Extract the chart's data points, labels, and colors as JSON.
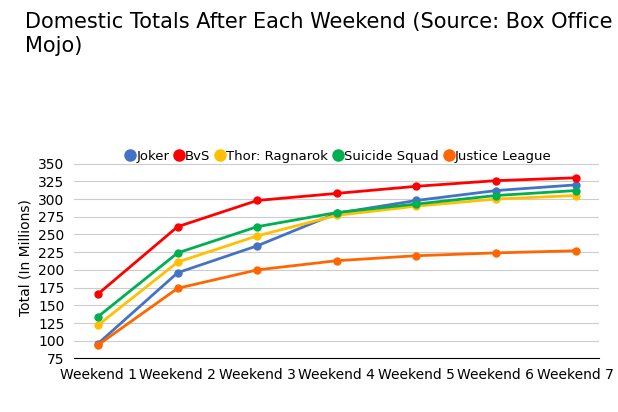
{
  "title": "Domestic Totals After Each Weekend (Source: Box Office\nMojo)",
  "ylabel": "Total (In Millions)",
  "weekends": [
    "Weekend 1",
    "Weekend 2",
    "Weekend 3",
    "Weekend 4",
    "Weekend 5",
    "Weekend 6",
    "Weekend 7"
  ],
  "series": [
    {
      "name": "Joker",
      "color": "#4472C4",
      "marker": "o",
      "values": [
        96,
        196,
        234,
        280,
        298,
        312,
        320
      ]
    },
    {
      "name": "BvS",
      "color": "#FF0000",
      "marker": "o",
      "values": [
        166,
        261,
        298,
        308,
        318,
        326,
        330
      ]
    },
    {
      "name": "Thor: Ragnarok",
      "color": "#FFC000",
      "marker": "o",
      "values": [
        122,
        211,
        248,
        277,
        290,
        300,
        305
      ]
    },
    {
      "name": "Suicide Squad",
      "color": "#00B050",
      "marker": "o",
      "values": [
        134,
        224,
        261,
        281,
        293,
        305,
        312
      ]
    },
    {
      "name": "Justice League",
      "color": "#FF6600",
      "marker": "o",
      "values": [
        94,
        174,
        200,
        213,
        220,
        224,
        227
      ]
    }
  ],
  "ylim": [
    75,
    360
  ],
  "yticks": [
    75,
    100,
    125,
    150,
    175,
    200,
    225,
    250,
    275,
    300,
    325,
    350
  ],
  "background_color": "#FFFFFF",
  "grid_color": "#CCCCCC",
  "title_fontsize": 15,
  "label_fontsize": 10,
  "legend_fontsize": 9.5
}
